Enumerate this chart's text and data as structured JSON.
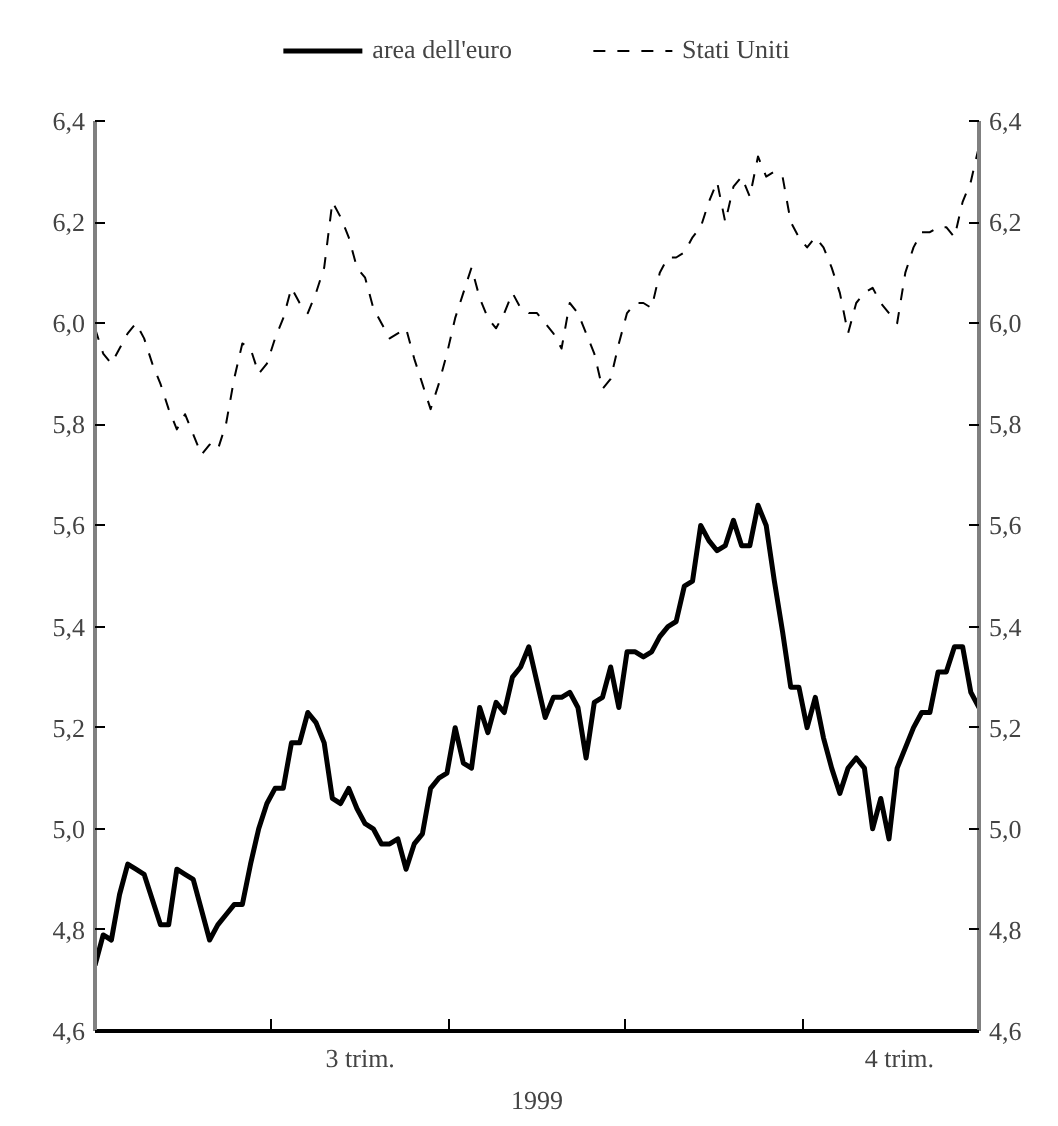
{
  "chart_data": {
    "type": "line",
    "xlabel": "1999",
    "legend": "top",
    "annotations": [
      "3 trim.",
      "4 trim."
    ],
    "categories": [
      null,
      null,
      null,
      null,
      null,
      null,
      null,
      null,
      null,
      null,
      null,
      null,
      null,
      null,
      null,
      null,
      null,
      null,
      null,
      null,
      null,
      null,
      null,
      null,
      null,
      null,
      null,
      null,
      null,
      null,
      null,
      null,
      null,
      null,
      null,
      null,
      null,
      null,
      null,
      null,
      null,
      null,
      null,
      null,
      null,
      null,
      null,
      null,
      null,
      null,
      null,
      null,
      null,
      null,
      null,
      null,
      null,
      null,
      null,
      null,
      null,
      null,
      null,
      null,
      null,
      null,
      null,
      null,
      null,
      null,
      null,
      null,
      null,
      null,
      null,
      null,
      null,
      null,
      null,
      null,
      null,
      null,
      null,
      null,
      null,
      null,
      null,
      null,
      null,
      null,
      null,
      null,
      null,
      null,
      null,
      null,
      null,
      null,
      null,
      null,
      null,
      null,
      null,
      null,
      null,
      null,
      null,
      null,
      null
    ],
    "ylim": [
      4.6,
      6.4
    ],
    "yticks": [
      {
        "value": 4.6,
        "label": "4,6"
      },
      {
        "value": 4.8,
        "label": "4,8"
      },
      {
        "value": 5.0,
        "label": "5,0"
      },
      {
        "value": 5.2,
        "label": "5,2"
      },
      {
        "value": 5.4,
        "label": "5,4"
      },
      {
        "value": 5.6,
        "label": "5,6"
      },
      {
        "value": 5.8,
        "label": "5,8"
      },
      {
        "value": 6.0,
        "label": "6,0"
      },
      {
        "value": 6.2,
        "label": "6,2"
      },
      {
        "value": 6.4,
        "label": "6,4"
      }
    ],
    "y2lim": [
      4.6,
      6.4
    ],
    "y2ticks": [
      {
        "value": 4.6,
        "label": "4,6"
      },
      {
        "value": 4.8,
        "label": "4,8"
      },
      {
        "value": 5.0,
        "label": "5,0"
      },
      {
        "value": 5.2,
        "label": "5,2"
      },
      {
        "value": 5.4,
        "label": "5,4"
      },
      {
        "value": 5.6,
        "label": "5,6"
      },
      {
        "value": 5.8,
        "label": "5,8"
      },
      {
        "value": 6.0,
        "label": "6,0"
      },
      {
        "value": 6.2,
        "label": "6,2"
      },
      {
        "value": 6.4,
        "label": "6,4"
      }
    ],
    "series": [
      {
        "name": "area dell'euro",
        "color": "#000000",
        "line_style": "solid",
        "values": [
          4.73,
          4.79,
          4.78,
          4.87,
          4.93,
          4.92,
          4.91,
          4.86,
          4.81,
          4.81,
          4.92,
          4.91,
          4.9,
          4.84,
          4.78,
          4.81,
          4.83,
          4.85,
          4.85,
          4.93,
          5.0,
          5.05,
          5.08,
          5.08,
          5.17,
          5.17,
          5.23,
          5.21,
          5.17,
          5.06,
          5.05,
          5.08,
          5.04,
          5.01,
          5.0,
          4.97,
          4.97,
          4.98,
          4.92,
          4.97,
          4.99,
          5.08,
          5.1,
          5.11,
          5.2,
          5.13,
          5.12,
          5.24,
          5.19,
          5.25,
          5.23,
          5.3,
          5.32,
          5.36,
          5.29,
          5.22,
          5.26,
          5.26,
          5.27,
          5.24,
          5.14,
          5.25,
          5.26,
          5.32,
          5.24,
          5.35,
          5.35,
          5.34,
          5.35,
          5.38,
          5.4,
          5.41,
          5.48,
          5.49,
          5.6,
          5.57,
          5.55,
          5.56,
          5.61,
          5.56,
          5.56,
          5.64,
          5.6,
          5.49,
          5.39,
          5.28,
          5.28,
          5.2,
          5.26,
          5.18,
          5.12,
          5.07,
          5.12,
          5.14,
          5.12,
          5.0,
          5.06,
          4.98,
          5.12,
          5.16,
          5.2,
          5.23,
          5.23,
          5.31,
          5.31,
          5.36,
          5.36,
          5.27,
          5.24
        ]
      },
      {
        "name": "Stati Uniti",
        "color": "#000000",
        "line_style": "dashed",
        "values": [
          5.99,
          5.94,
          5.92,
          5.95,
          5.98,
          6.0,
          5.97,
          5.92,
          5.88,
          5.83,
          5.79,
          5.82,
          5.78,
          5.74,
          5.76,
          5.75,
          5.8,
          5.89,
          5.96,
          5.95,
          5.9,
          5.92,
          5.97,
          6.01,
          6.07,
          6.04,
          6.02,
          6.06,
          6.11,
          6.24,
          6.21,
          6.17,
          6.11,
          6.09,
          6.03,
          6.0,
          5.97,
          5.98,
          5.99,
          5.93,
          5.88,
          5.83,
          5.88,
          5.94,
          6.01,
          6.06,
          6.11,
          6.05,
          6.01,
          5.99,
          6.02,
          6.06,
          6.03,
          6.02,
          6.02,
          6.0,
          5.98,
          5.95,
          6.04,
          6.02,
          5.98,
          5.94,
          5.87,
          5.89,
          5.96,
          6.02,
          6.04,
          6.04,
          6.03,
          6.1,
          6.13,
          6.13,
          6.14,
          6.17,
          6.19,
          6.24,
          6.28,
          6.2,
          6.27,
          6.29,
          6.25,
          6.33,
          6.29,
          6.3,
          6.29,
          6.2,
          6.17,
          6.15,
          6.17,
          6.15,
          6.11,
          6.06,
          5.98,
          6.04,
          6.06,
          6.07,
          6.04,
          6.02,
          6.0,
          6.1,
          6.15,
          6.18,
          6.18,
          6.19,
          6.19,
          6.17,
          6.24,
          6.28,
          6.35
        ]
      }
    ]
  }
}
